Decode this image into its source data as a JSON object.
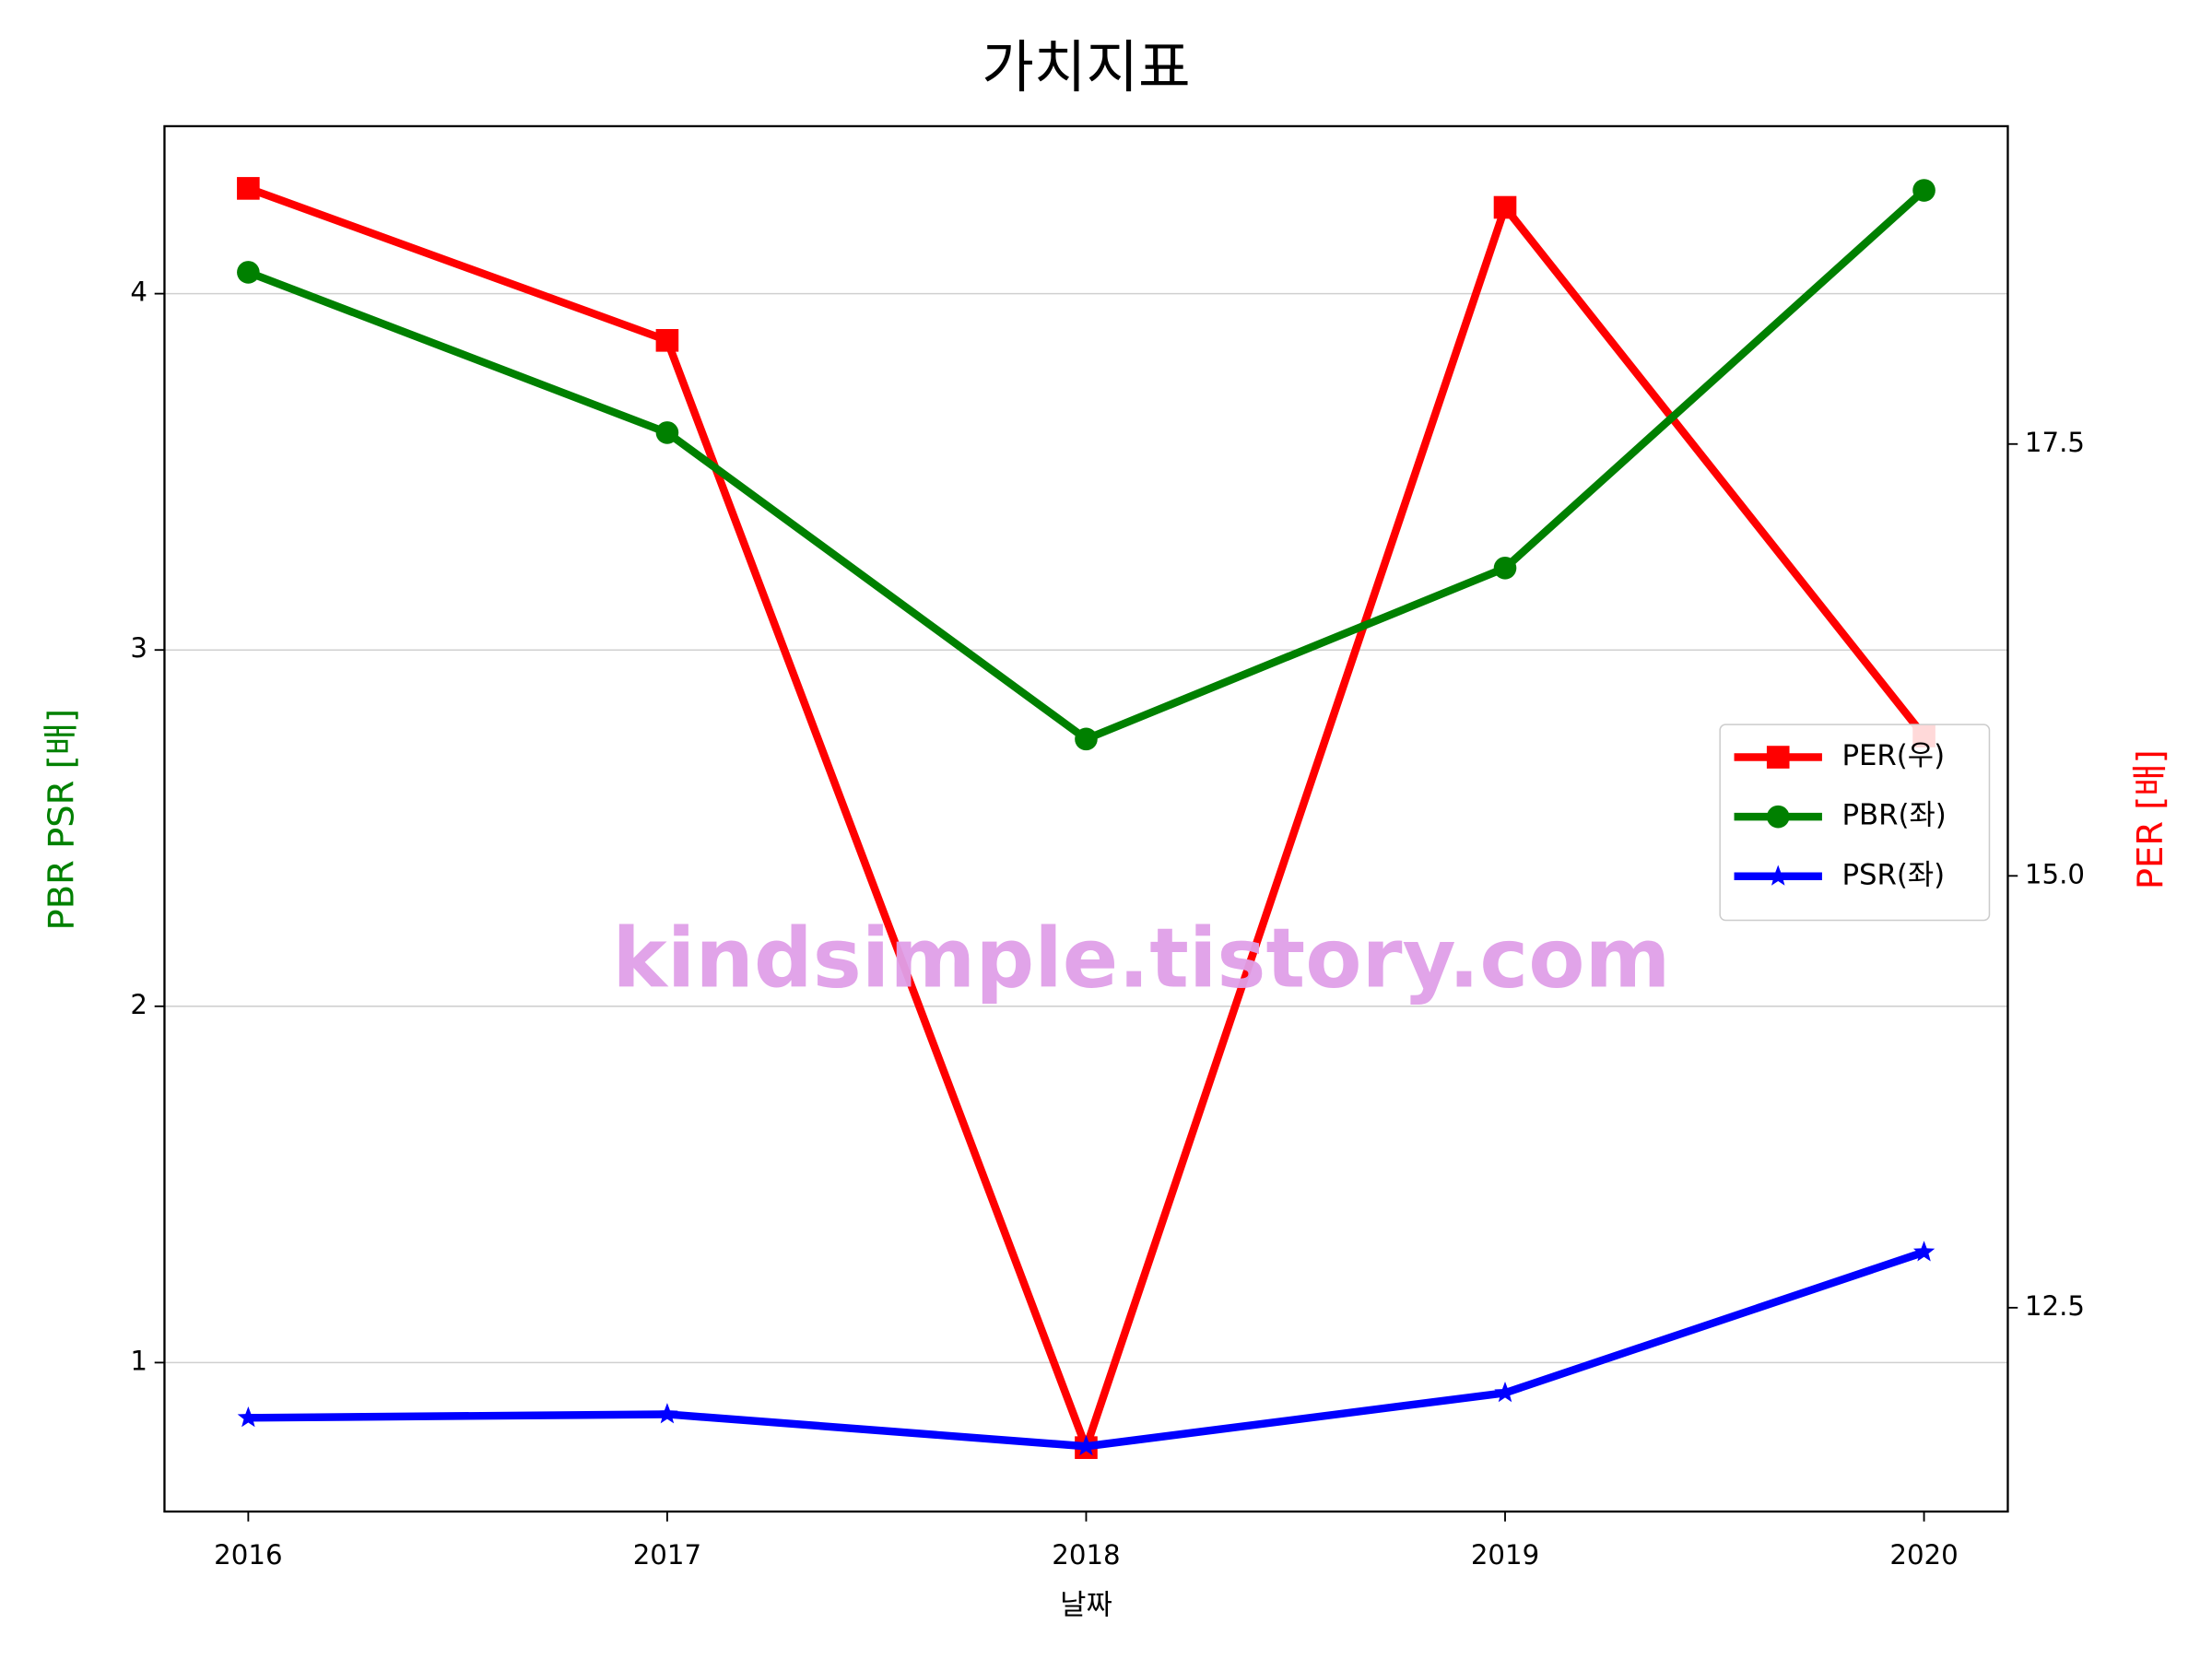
{
  "chart_data": {
    "type": "line",
    "title": "가치지표",
    "xlabel": "날짜",
    "ylabel": "PBR PSR [배]",
    "y2label": "PER [배]",
    "watermark": "kindsimple.tistory.com",
    "x": [
      2016,
      2017,
      2018,
      2019,
      2020
    ],
    "xlim": [
      2015.8,
      2020.2
    ],
    "xticks": [
      2016,
      2017,
      2018,
      2019,
      2020
    ],
    "ylim": [
      0.582,
      4.47
    ],
    "yticks": [
      1,
      2,
      3,
      4
    ],
    "y2lim": [
      11.32,
      19.34
    ],
    "y2ticks": [
      12.5,
      {
        "value": 15,
        "label": "15.0"
      },
      17.5
    ],
    "grid": true,
    "legend": "center right",
    "series": [
      {
        "name": "PER(우)",
        "color": "#ff0000",
        "marker": "square",
        "axis": "y2",
        "values": [
          18.98,
          18.1,
          11.69,
          18.87,
          15.81
        ]
      },
      {
        "name": "PBR(좌)",
        "color": "#008000",
        "marker": "circle",
        "values": [
          4.06,
          3.61,
          2.75,
          3.23,
          4.29
        ]
      },
      {
        "name": "PSR(좌)",
        "color": "#0000ff",
        "marker": "star",
        "values": [
          0.845,
          0.855,
          0.765,
          0.915,
          1.31
        ]
      }
    ]
  }
}
